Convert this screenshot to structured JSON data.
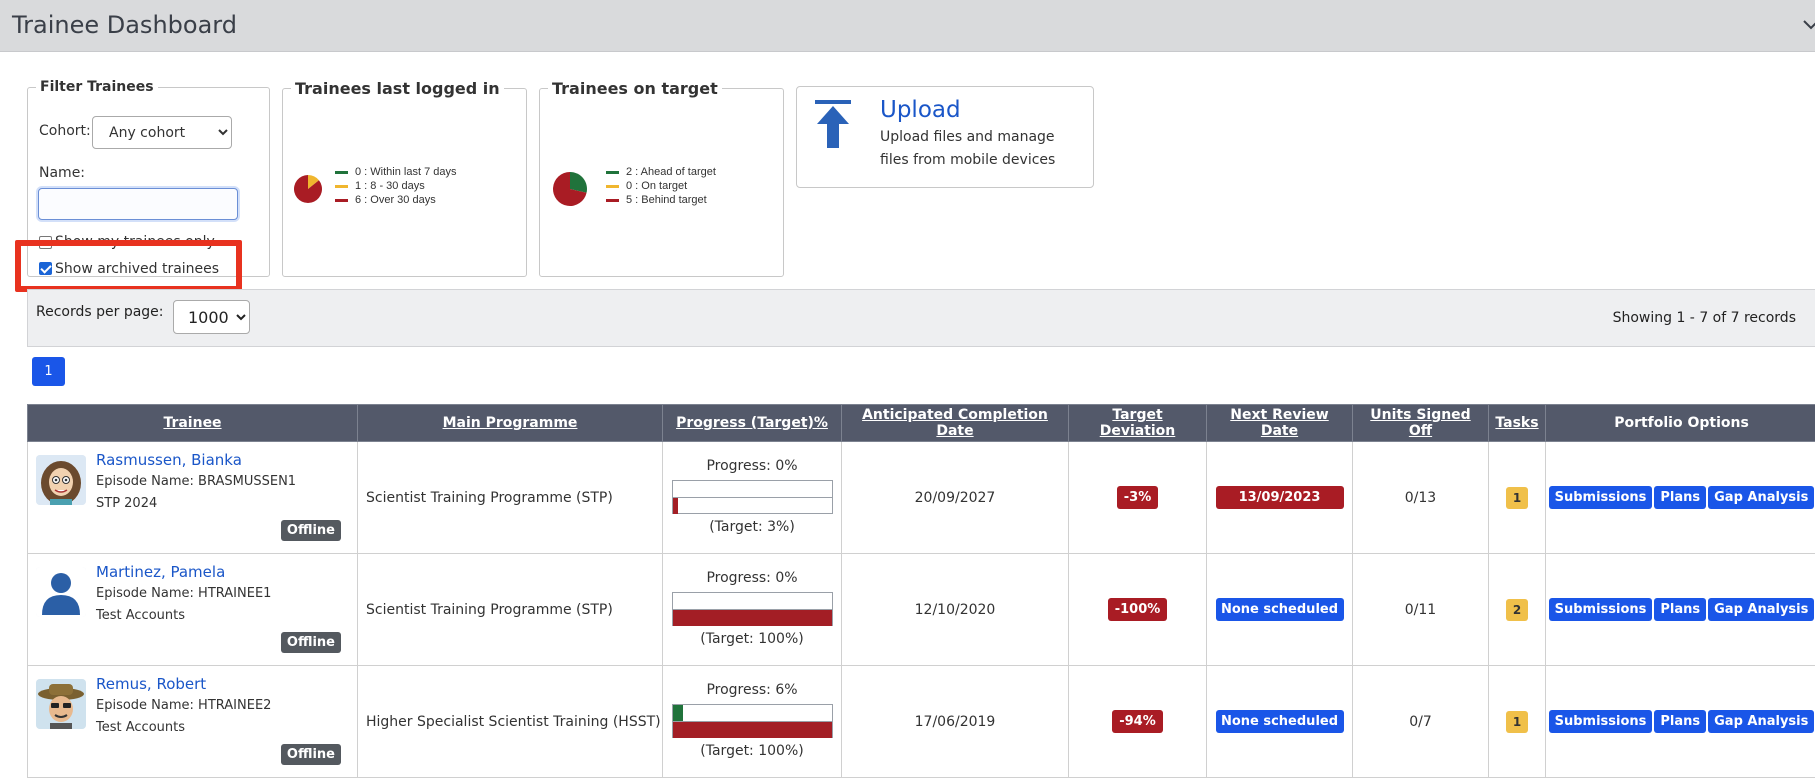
{
  "page": {
    "title": "Trainee Dashboard"
  },
  "filter": {
    "legend": "Filter Trainees",
    "cohort_label": "Cohort:",
    "cohort_value": "Any cohort",
    "name_label": "Name:",
    "name_value": "",
    "my_trainees_label": "Show my trainees only",
    "my_trainees_checked": false,
    "archived_label": "Show archived trainees",
    "archived_checked": true
  },
  "logged_in": {
    "legend": "Trainees last logged in",
    "items": [
      {
        "label": "0 : Within last 7 days",
        "count": 0,
        "color": "#20733b"
      },
      {
        "label": "1 : 8 - 30 days",
        "count": 1,
        "color": "#f0b62e"
      },
      {
        "label": "6 : Over 30 days",
        "count": 6,
        "color": "#a91c24"
      }
    ]
  },
  "on_target": {
    "legend": "Trainees on target",
    "items": [
      {
        "label": "2 : Ahead of target",
        "count": 2,
        "color": "#20733b"
      },
      {
        "label": "0 : On target",
        "count": 0,
        "color": "#f0b62e"
      },
      {
        "label": "5 : Behind target",
        "count": 5,
        "color": "#a91c24"
      }
    ]
  },
  "upload": {
    "title": "Upload",
    "text": "Upload files and manage files from mobile devices",
    "icon": "upload-arrow-icon"
  },
  "records": {
    "per_page_label": "Records per page:",
    "per_page_value": "1000",
    "showing": "Showing 1 - 7 of 7 records"
  },
  "pager": {
    "current": "1"
  },
  "table": {
    "headers": [
      "Trainee",
      "Main Programme",
      "Progress (Target)%",
      "Anticipated Completion Date",
      "Target Deviation",
      "Next Review Date",
      "Units Signed Off",
      "Tasks",
      "Portfolio Options"
    ],
    "options": [
      "Submissions",
      "Plans",
      "Gap Analysis"
    ],
    "rows": [
      {
        "name": "Rasmussen, Bianka",
        "episode": "Episode Name: BRASMUSSEN1",
        "cohort": "STP 2024",
        "status": "Offline",
        "avatar": "cartoon-woman-avatar",
        "programme": "Scientist Training Programme (STP)",
        "progress_label": "Progress: 0%",
        "progress": 0,
        "target": 3,
        "target_label": "(Target: 3%)",
        "completion": "20/09/2027",
        "deviation": "-3%",
        "review": "13/09/2023",
        "review_overdue": true,
        "units": "0/13",
        "tasks": "1"
      },
      {
        "name": "Martinez, Pamela",
        "episode": "Episode Name: HTRAINEE1",
        "cohort": "Test Accounts",
        "status": "Offline",
        "avatar": "default-user-avatar",
        "programme": "Scientist Training Programme (STP)",
        "progress_label": "Progress: 0%",
        "progress": 0,
        "target": 100,
        "target_label": "(Target: 100%)",
        "completion": "12/10/2020",
        "deviation": "-100%",
        "review": "None scheduled",
        "review_overdue": false,
        "units": "0/11",
        "tasks": "2"
      },
      {
        "name": "Remus, Robert",
        "episode": "Episode Name: HTRAINEE2",
        "cohort": "Test Accounts",
        "status": "Offline",
        "avatar": "cartoon-man-hat-avatar",
        "programme": "Higher Specialist Scientist Training (HSST)",
        "progress_label": "Progress: 6%",
        "progress": 6,
        "target": 100,
        "target_label": "(Target: 100%)",
        "completion": "17/06/2019",
        "deviation": "-94%",
        "review": "None scheduled",
        "review_overdue": false,
        "units": "0/7",
        "tasks": "1"
      }
    ]
  }
}
